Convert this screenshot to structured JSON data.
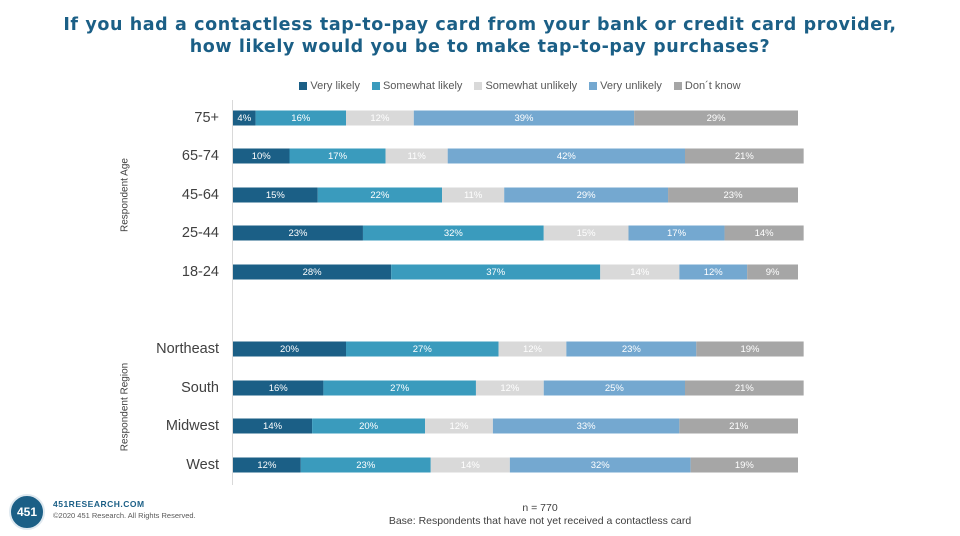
{
  "chart_data": {
    "type": "bar",
    "orientation": "horizontal",
    "stacked": "100%",
    "title": "If you had a contactless tap-to-pay card from your bank or credit card provider, how likely would you be to make tap-to-pay purchases?",
    "legend_position": "top",
    "series_colors": [
      "#1b5f86",
      "#3a9bbd",
      "#d9d9d9",
      "#74a8d0",
      "#a6a6a6"
    ],
    "series": [
      {
        "name": "Very likely",
        "values": [
          4,
          10,
          15,
          23,
          28,
          20,
          16,
          14,
          12
        ]
      },
      {
        "name": "Somewhat likely",
        "values": [
          16,
          17,
          22,
          32,
          37,
          27,
          27,
          20,
          23
        ]
      },
      {
        "name": "Somewhat unlikely",
        "values": [
          12,
          11,
          11,
          15,
          14,
          12,
          12,
          12,
          14
        ]
      },
      {
        "name": "Very unlikely",
        "values": [
          39,
          42,
          29,
          17,
          12,
          23,
          25,
          33,
          32
        ]
      },
      {
        "name": "Don´t know",
        "values": [
          29,
          21,
          23,
          14,
          9,
          19,
          21,
          21,
          19
        ]
      }
    ],
    "groups": [
      {
        "label": "Respondent Age",
        "categories": [
          "75+",
          "65-74",
          "45-64",
          "25-44",
          "18-24"
        ]
      },
      {
        "label": "Respondent Region",
        "categories": [
          "Northeast",
          "South",
          "Midwest",
          "West"
        ]
      }
    ]
  },
  "footer": {
    "n": "n = 770",
    "base": "Base: Respondents that have not yet received a contactless card"
  },
  "branding": {
    "logo_text": "451",
    "site": "451RESEARCH.COM",
    "copyright": "©2020 451 Research. All Rights Reserved."
  }
}
